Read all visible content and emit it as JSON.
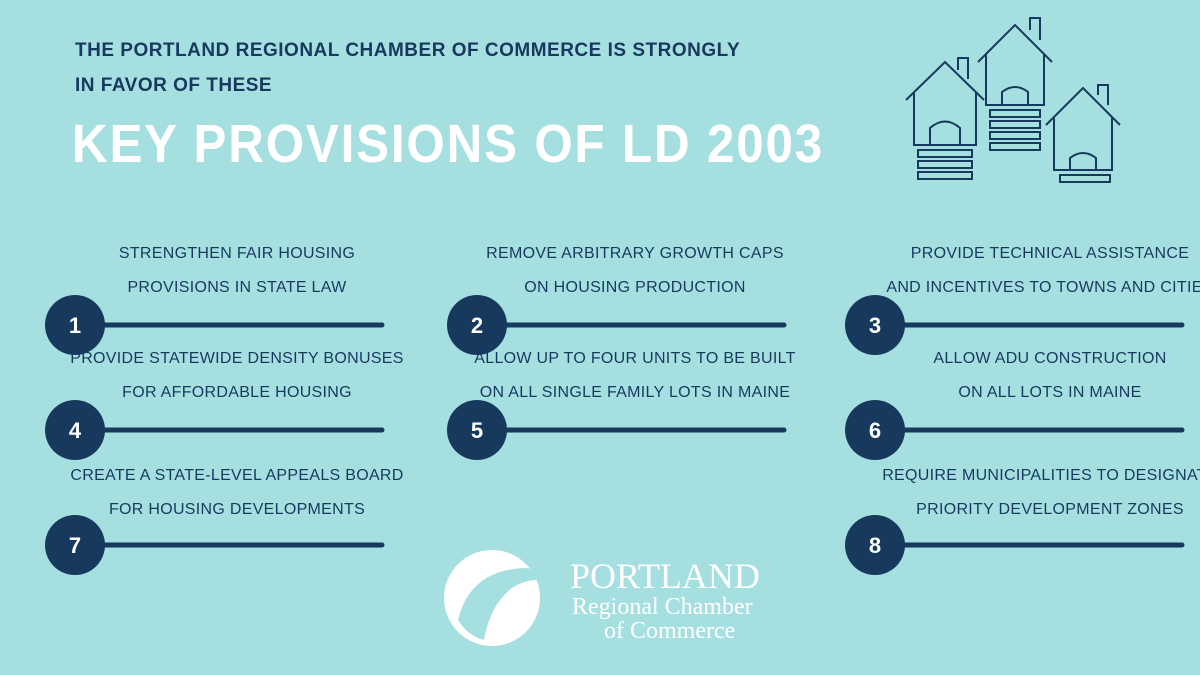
{
  "header": {
    "intro_lines": [
      "THE PORTLAND REGIONAL CHAMBER OF COMMERCE IS STRONGLY",
      "IN FAVOR OF THESE"
    ],
    "title": "KEY PROVISIONS OF LD 2003"
  },
  "items": [
    {
      "number": 1,
      "lines": [
        "STRENGTHEN FAIR HOUSING",
        "PROVISIONS IN STATE LAW"
      ]
    },
    {
      "number": 2,
      "lines": [
        "REMOVE ARBITRARY GROWTH CAPS",
        "ON HOUSING PRODUCTION"
      ]
    },
    {
      "number": 3,
      "lines": [
        "PROVIDE TECHNICAL ASSISTANCE",
        "AND INCENTIVES TO TOWNS AND CITIES"
      ]
    },
    {
      "number": 4,
      "lines": [
        "PROVIDE STATEWIDE DENSITY BONUSES",
        "FOR AFFORDABLE HOUSING"
      ]
    },
    {
      "number": 5,
      "lines": [
        "ALLOW UP TO FOUR UNITS TO BE BUILT",
        "ON ALL SINGLE FAMILY LOTS IN MAINE"
      ]
    },
    {
      "number": 6,
      "lines": [
        "ALLOW ADU CONSTRUCTION",
        "ON ALL LOTS IN MAINE"
      ]
    },
    {
      "number": 7,
      "lines": [
        "CREATE A STATE-LEVEL APPEALS BOARD",
        "FOR HOUSING DEVELOPMENTS"
      ]
    },
    {
      "number": 8,
      "lines": [
        "REQUIRE MUNICIPALITIES TO DESIGNATE",
        "PRIORITY DEVELOPMENT ZONES"
      ]
    }
  ],
  "logo": {
    "name": "PORTLAND",
    "line2": "Regional Chamber",
    "line3": "of Commerce"
  }
}
